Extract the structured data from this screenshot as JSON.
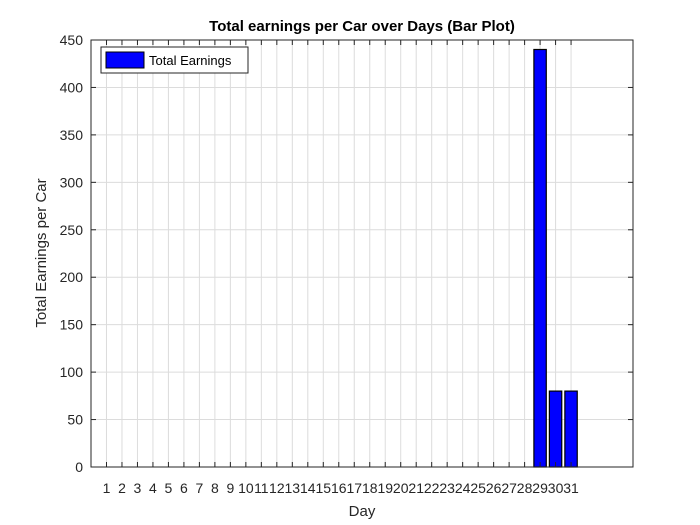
{
  "chart_data": {
    "type": "bar",
    "title": "Total earnings per Car over Days (Bar Plot)",
    "xlabel": "Day",
    "ylabel": "Total Earnings per Car",
    "categories": [
      "1",
      "2",
      "3",
      "4",
      "5",
      "6",
      "7",
      "8",
      "9",
      "10",
      "11",
      "12",
      "13",
      "14",
      "15",
      "16",
      "17",
      "18",
      "19",
      "20",
      "21",
      "22",
      "23",
      "24",
      "25",
      "26",
      "27",
      "28",
      "29",
      "30",
      "31"
    ],
    "series": [
      {
        "name": "Total Earnings",
        "values": [
          0,
          0,
          0,
          0,
          0,
          0,
          0,
          0,
          0,
          0,
          0,
          0,
          0,
          0,
          0,
          0,
          0,
          0,
          0,
          0,
          0,
          0,
          0,
          0,
          0,
          0,
          0,
          0,
          440,
          80,
          80
        ]
      }
    ],
    "xlim": [
      0,
      35
    ],
    "ylim": [
      0,
      450
    ],
    "yticks": [
      0,
      50,
      100,
      150,
      200,
      250,
      300,
      350,
      400,
      450
    ],
    "grid": true,
    "legend_position": "top-left",
    "bar_color": "#0000ff",
    "edge_color": "#000000"
  }
}
